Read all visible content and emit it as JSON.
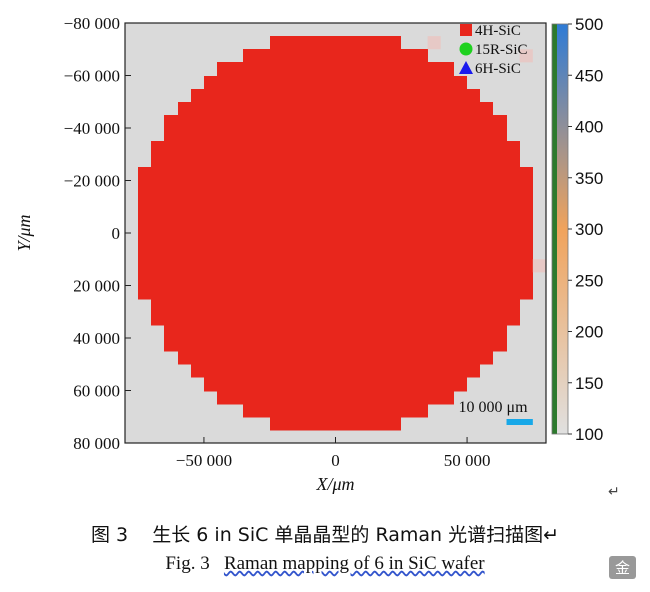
{
  "chart_data": {
    "type": "heatmap",
    "xlabel": "X/μm",
    "ylabel": "Y/μm",
    "xlim": [
      -80000,
      80000
    ],
    "ylim": [
      -80000,
      80000
    ],
    "x_ticks": [
      -50000,
      0,
      50000
    ],
    "x_tick_labels": [
      "−50 000",
      "0",
      "50 000"
    ],
    "y_ticks": [
      -80000,
      -60000,
      -40000,
      -20000,
      0,
      20000,
      40000,
      60000,
      80000
    ],
    "y_tick_labels": [
      "−80 000",
      "−60 000",
      "−40 000",
      "−20 000",
      "0",
      "20 000",
      "40 000",
      "60 000",
      "80 000"
    ],
    "map_radius": 76200,
    "cell_size": 5000,
    "map_color": "#e8261c",
    "background_color": "#dadada",
    "edge_cells": [
      [
        37500,
        -72500
      ],
      [
        72500,
        -67500
      ],
      [
        77500,
        12500
      ]
    ],
    "edge_cell_color": "#e7c9c6",
    "legend": {
      "position": "top-right",
      "entries": [
        {
          "label": "4H-SiC",
          "marker": "square",
          "color": "#e8261c"
        },
        {
          "label": "15R-SiC",
          "marker": "circle",
          "color": "#1fd11f"
        },
        {
          "label": "6H-SiC",
          "marker": "triangle",
          "color": "#1a1aee"
        }
      ]
    },
    "colorbar": {
      "min": 100,
      "max": 500,
      "ticks": [
        500,
        450,
        400,
        350,
        300,
        250,
        200,
        150,
        100
      ],
      "colors": [
        "#2e7bd6",
        "#f0a35c",
        "#e0e0e0"
      ]
    },
    "scale_bar": {
      "label": "10 000 μm",
      "length": 10000,
      "color": "#18a8e8"
    }
  },
  "captions": {
    "cn_fig": "图 3",
    "cn_text": "生长 6 in SiC 单晶晶型的 Raman 光谱扫描图",
    "en_fig": "Fig. 3",
    "en_text": "Raman mapping of 6 in SiC wafer"
  }
}
